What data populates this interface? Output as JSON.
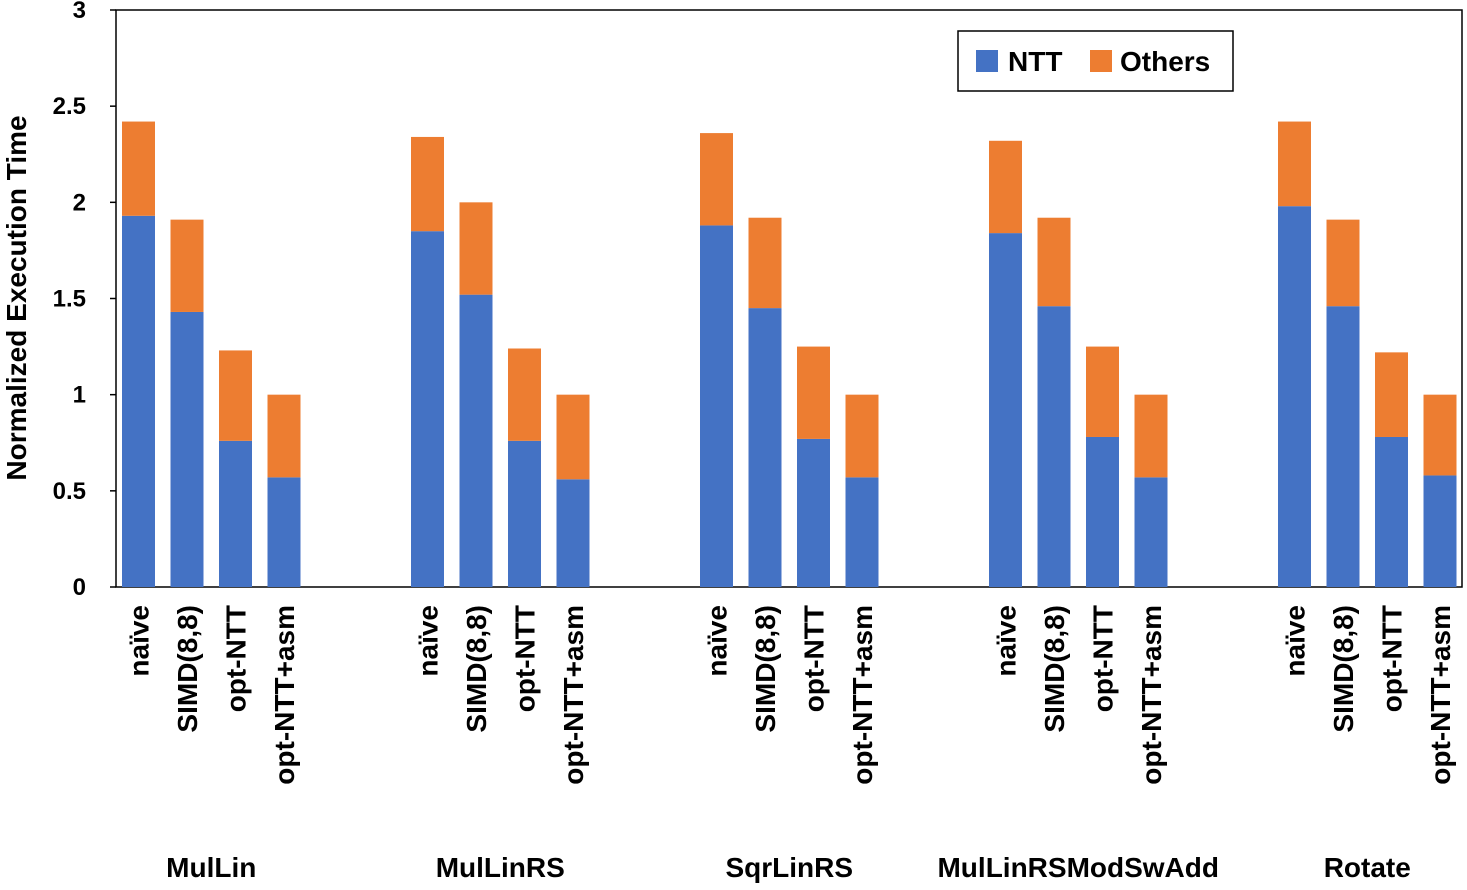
{
  "chart_data": {
    "type": "bar",
    "stacked": true,
    "title": "",
    "xlabel": "",
    "ylabel": "Normalized Execution Time",
    "ylim": [
      0,
      3
    ],
    "yticks": [
      "0",
      "0.5",
      "1",
      "1.5",
      "2",
      "2.5",
      "3"
    ],
    "ytick_values": [
      0,
      0.5,
      1,
      1.5,
      2,
      2.5,
      3
    ],
    "grid": false,
    "legend_position": "top-right",
    "groups": [
      {
        "name": "MulLin",
        "categories": [
          "naïve",
          "SIMD(8,8)",
          "opt-NTT",
          "opt-NTT+asm"
        ]
      },
      {
        "name": "MulLinRS",
        "categories": [
          "naïve",
          "SIMD(8,8)",
          "opt-NTT",
          "opt-NTT+asm"
        ]
      },
      {
        "name": "SqrLinRS",
        "categories": [
          "naïve",
          "SIMD(8,8)",
          "opt-NTT",
          "opt-NTT+asm"
        ]
      },
      {
        "name": "MulLinRSModSwAdd",
        "categories": [
          "naïve",
          "SIMD(8,8)",
          "opt-NTT",
          "opt-NTT+asm"
        ]
      },
      {
        "name": "Rotate",
        "categories": [
          "naïve",
          "SIMD(8,8)",
          "opt-NTT",
          "opt-NTT+asm"
        ]
      }
    ],
    "series": [
      {
        "name": "NTT",
        "color": "#4472C4",
        "values": [
          1.93,
          1.43,
          0.76,
          0.57,
          1.85,
          1.52,
          0.76,
          0.56,
          1.88,
          1.45,
          0.77,
          0.57,
          1.84,
          1.46,
          0.78,
          0.57,
          1.98,
          1.46,
          0.78,
          0.58
        ]
      },
      {
        "name": "Others",
        "color": "#ED7D31",
        "values": [
          0.49,
          0.48,
          0.47,
          0.43,
          0.49,
          0.48,
          0.48,
          0.44,
          0.48,
          0.47,
          0.48,
          0.43,
          0.48,
          0.46,
          0.47,
          0.43,
          0.44,
          0.45,
          0.44,
          0.42
        ]
      }
    ]
  }
}
